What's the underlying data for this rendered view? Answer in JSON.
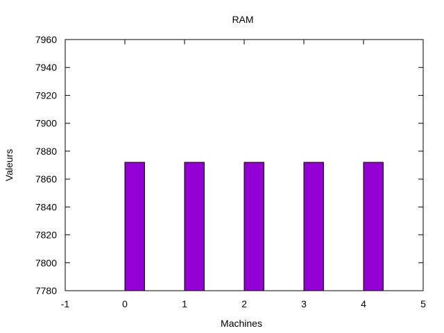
{
  "chart_data": {
    "type": "bar",
    "title": "RAM",
    "xlabel": "Machines",
    "ylabel": "Valeurs",
    "x": [
      0,
      1,
      2,
      3,
      4
    ],
    "values": [
      7872,
      7872,
      7872,
      7872,
      7872
    ],
    "xlim": [
      -1,
      5
    ],
    "ylim": [
      7780,
      7960
    ],
    "xticks": [
      "-1",
      "0",
      "1",
      "2",
      "3",
      "4",
      "5"
    ],
    "yticks": [
      "7780",
      "7800",
      "7820",
      "7840",
      "7860",
      "7880",
      "7900",
      "7920",
      "7940",
      "7960"
    ],
    "bar_width": 0.33,
    "grid": false,
    "legend": "none",
    "bar_color": "#9400d3",
    "bar_edge_color": "#000000"
  }
}
